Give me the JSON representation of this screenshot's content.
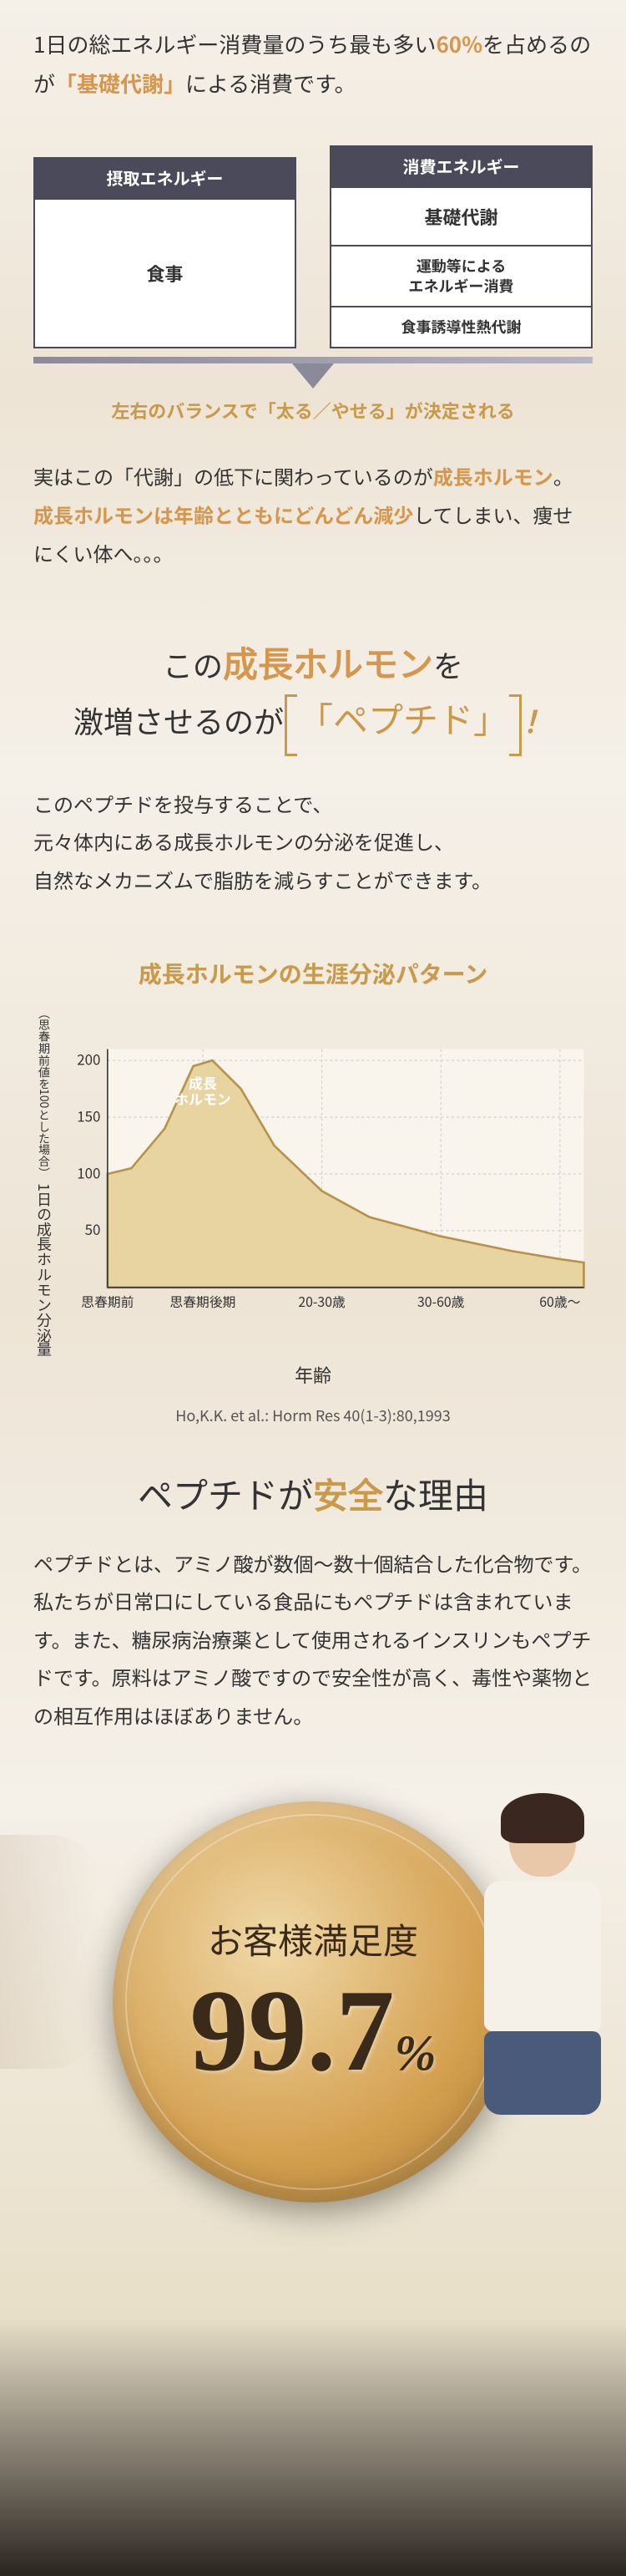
{
  "intro": {
    "pre": "1日の総エネルギー消費量のうち最も多い",
    "pct": "60%",
    "mid": "を占めるのが",
    "highlight": "「基礎代謝」",
    "post": "による消費です。"
  },
  "balance": {
    "left_header": "摂取エネルギー",
    "left_box": "食事",
    "right_header": "消費エネルギー",
    "right_items": [
      "基礎代謝",
      "運動等による\nエネルギー消費",
      "食事誘導性熱代謝"
    ],
    "caption": "左右のバランスで「太る／やせる」が決定される",
    "bar_color": "#8a8a9a",
    "header_bg": "#4a4a5a"
  },
  "metabolism": {
    "line1_pre": "実はこの「代謝」の低下に関わっているのが",
    "line1_hl": "成長ホルモン",
    "line1_post": "。",
    "line2_hl": "成長ホルモンは年齢とともにどんどん減少",
    "line2_post": "してしまい、痩せにくい体へ。。。"
  },
  "headline": {
    "l1_pre": "この",
    "l1_hl": "成長ホルモン",
    "l1_post": "を",
    "l2_pre": "激増させるのが",
    "l2_box": "「ペプチド」",
    "l2_post": "！"
  },
  "peptide_desc": "このペプチドを投与することで、\n元々体内にある成長ホルモンの分泌を促進し、\n自然なメカニズムで脂肪を減らすことができます。",
  "chart": {
    "title": "成長ホルモンの生涯分泌パターン",
    "type": "area",
    "x_categories": [
      "思春期前",
      "思春期後期",
      "20-30歳",
      "30-60歳",
      "60歳〜"
    ],
    "x_positions": [
      0,
      0.2,
      0.45,
      0.7,
      0.95
    ],
    "y_ticks": [
      50,
      100,
      150,
      200
    ],
    "y_axis_label": "1日の成長ホルモン分泌量",
    "y_axis_sub": "（思春期前値を100とした場合）",
    "x_axis_label": "年齢",
    "peak_label": "成長\nホルモン",
    "data_points": [
      {
        "x": 0.0,
        "y": 100
      },
      {
        "x": 0.05,
        "y": 105
      },
      {
        "x": 0.12,
        "y": 140
      },
      {
        "x": 0.18,
        "y": 195
      },
      {
        "x": 0.22,
        "y": 200
      },
      {
        "x": 0.28,
        "y": 175
      },
      {
        "x": 0.35,
        "y": 125
      },
      {
        "x": 0.45,
        "y": 85
      },
      {
        "x": 0.55,
        "y": 62
      },
      {
        "x": 0.7,
        "y": 45
      },
      {
        "x": 0.85,
        "y": 32
      },
      {
        "x": 0.95,
        "y": 25
      },
      {
        "x": 1.0,
        "y": 22
      }
    ],
    "ylim": [
      0,
      210
    ],
    "fill_color": "#e8d4a0",
    "line_color": "#b8924a",
    "grid_color": "#cccccc",
    "bg_color": "#f9f5ec",
    "peak_label_color": "#ffffff",
    "citation": "Ho,K.K. et al.: Horm Res 40(1-3):80,1993"
  },
  "safety": {
    "title_pre": "ペプチドが",
    "title_hl": "安全",
    "title_post": "な理由",
    "body": "ペプチドとは、アミノ酸が数個〜数十個結合した化合物です。私たちが日常口にしている食品にもペプチドは含まれています。また、糖尿病治療薬として使用されるインスリンもペプチドです。原料はアミノ酸ですので安全性が高く、毒性や薬物との相互作用はほぼありません。"
  },
  "satisfaction": {
    "label": "お客様満足度",
    "value": "99.7",
    "unit": "%",
    "circle_gradient_start": "#f0d9a8",
    "circle_gradient_mid": "#d4a050",
    "circle_gradient_end": "#a67830",
    "text_color": "#3a2a1a"
  }
}
